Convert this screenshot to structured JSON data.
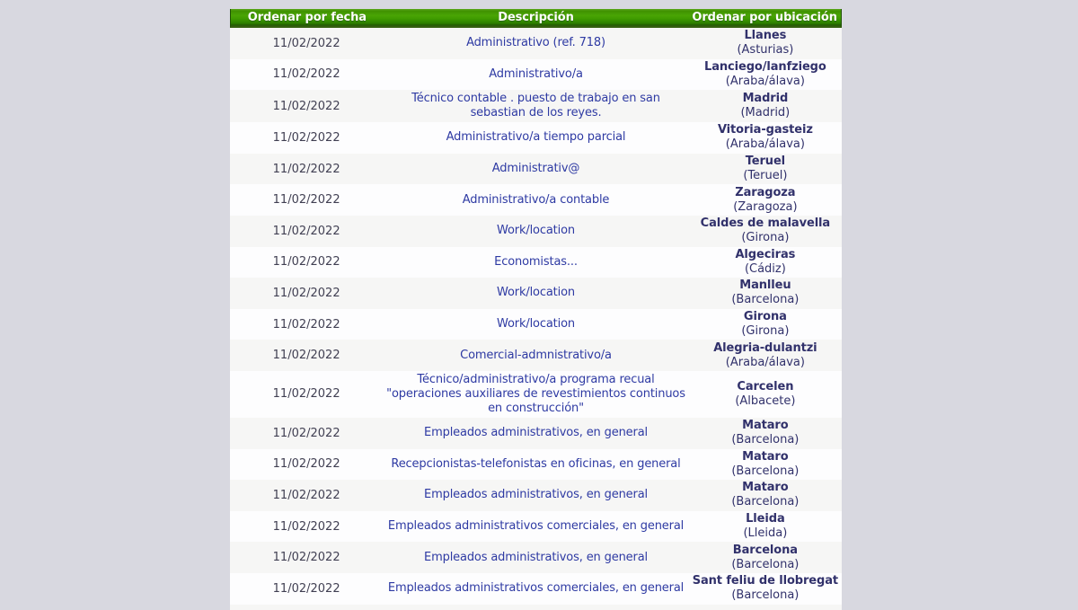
{
  "table": {
    "headers": [
      {
        "label": "Ordenar por fecha"
      },
      {
        "label": "Descripción"
      },
      {
        "label": "Ordenar por ubicación"
      }
    ],
    "rows": [
      {
        "date": "11/02/2022",
        "description": "Administrativo (ref. 718)",
        "city": "Llanes",
        "province": "(Asturias)"
      },
      {
        "date": "11/02/2022",
        "description": "Administrativo/a",
        "city": "Lanciego/lanfziego",
        "province": "(Araba/álava)"
      },
      {
        "date": "11/02/2022",
        "description": "Técnico contable . puesto de trabajo en san sebastian de los reyes.",
        "city": "Madrid",
        "province": "(Madrid)"
      },
      {
        "date": "11/02/2022",
        "description": "Administrativo/a tiempo parcial",
        "city": "Vitoria-gasteiz",
        "province": "(Araba/álava)"
      },
      {
        "date": "11/02/2022",
        "description": "Administrativ@",
        "city": "Teruel",
        "province": "(Teruel)"
      },
      {
        "date": "11/02/2022",
        "description": "Administrativo/a contable",
        "city": "Zaragoza",
        "province": "(Zaragoza)"
      },
      {
        "date": "11/02/2022",
        "description": "Work/location",
        "city": "Caldes de malavella",
        "province": "(Girona)"
      },
      {
        "date": "11/02/2022",
        "description": "Economistas...",
        "city": "Algeciras",
        "province": "(Cádiz)"
      },
      {
        "date": "11/02/2022",
        "description": "Work/location",
        "city": "Manlleu",
        "province": "(Barcelona)"
      },
      {
        "date": "11/02/2022",
        "description": "Work/location",
        "city": "Girona",
        "province": "(Girona)"
      },
      {
        "date": "11/02/2022",
        "description": "Comercial-admnistrativo/a",
        "city": "Alegria-dulantzi",
        "province": "(Araba/álava)"
      },
      {
        "date": "11/02/2022",
        "description": "Técnico/administrativo/a programa recual \"operaciones auxiliares de revestimientos continuos en construcción\"",
        "city": "Carcelen",
        "province": "(Albacete)"
      },
      {
        "date": "11/02/2022",
        "description": "Empleados administrativos, en general",
        "city": "Mataro",
        "province": "(Barcelona)"
      },
      {
        "date": "11/02/2022",
        "description": "Recepcionistas-telefonistas en oficinas, en general",
        "city": "Mataro",
        "province": "(Barcelona)"
      },
      {
        "date": "11/02/2022",
        "description": "Empleados administrativos, en general",
        "city": "Mataro",
        "province": "(Barcelona)"
      },
      {
        "date": "11/02/2022",
        "description": "Empleados administrativos comerciales, en general",
        "city": "Lleida",
        "province": "(Lleida)"
      },
      {
        "date": "11/02/2022",
        "description": "Empleados administrativos, en general",
        "city": "Barcelona",
        "province": "(Barcelona)"
      },
      {
        "date": "11/02/2022",
        "description": "Empleados administrativos comerciales, en general",
        "city": "Sant feliu de llobregat",
        "province": "(Barcelona)"
      }
    ]
  },
  "colors": {
    "page_background": "#d8d8e0",
    "header_green": "#3e9a00",
    "header_text": "#ffffff",
    "description_link": "#2e3aa3",
    "location_text": "#31316b",
    "date_text": "#403f52",
    "row_odd": "#f6f6f5",
    "row_even": "#fdfdfe"
  }
}
